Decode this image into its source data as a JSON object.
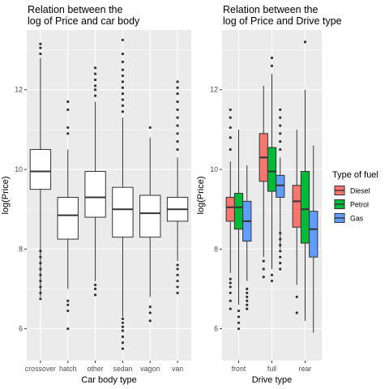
{
  "chart_data": [
    {
      "type": "boxplot",
      "title": "Relation between the\nlog of Price and car body",
      "xlabel": "Car body type",
      "ylabel": "log(Price)",
      "ylim": [
        5.2,
        13.5
      ],
      "yticks": [
        6,
        8,
        10,
        12
      ],
      "grid": true,
      "categories": [
        "crossover",
        "hatch",
        "other",
        "sedan",
        "vagon",
        "van"
      ],
      "boxes": [
        {
          "category": "crossover",
          "whisker_low": 6.8,
          "q1": 9.5,
          "median": 9.95,
          "q3": 10.5,
          "whisker_high": 12.8,
          "outliers": [
            6.75,
            6.9,
            7.05,
            7.2,
            7.35,
            7.5,
            7.65,
            7.8,
            7.95,
            12.9,
            13.05,
            13.15
          ]
        },
        {
          "category": "hatch",
          "whisker_low": 7.0,
          "q1": 8.25,
          "median": 8.85,
          "q3": 9.3,
          "whisker_high": 10.5,
          "outliers": [
            6.0,
            6.45,
            6.6,
            6.7,
            10.9,
            11.05,
            11.5,
            11.7
          ]
        },
        {
          "category": "other",
          "whisker_low": 7.2,
          "q1": 8.8,
          "median": 9.3,
          "q3": 9.95,
          "whisker_high": 11.7,
          "outliers": [
            6.85,
            7.0,
            7.1,
            11.85,
            12.0,
            12.1,
            12.25,
            12.4,
            12.55
          ]
        },
        {
          "category": "sedan",
          "whisker_low": 6.3,
          "q1": 8.3,
          "median": 9.0,
          "q3": 9.55,
          "whisker_high": 11.3,
          "outliers": [
            5.5,
            5.65,
            5.8,
            5.95,
            6.05,
            6.15,
            6.25,
            11.45,
            11.6,
            11.75,
            11.9,
            12.05,
            12.2,
            12.35,
            12.5,
            12.7,
            12.9,
            13.25
          ]
        },
        {
          "category": "vagon",
          "whisker_low": 6.8,
          "q1": 8.3,
          "median": 8.9,
          "q3": 9.35,
          "whisker_high": 10.8,
          "outliers": [
            6.2,
            6.4,
            6.55,
            11.05
          ]
        },
        {
          "category": "van",
          "whisker_low": 7.7,
          "q1": 8.7,
          "median": 9.0,
          "q3": 9.3,
          "whisker_high": 10.3,
          "outliers": [
            6.9,
            7.05,
            7.2,
            7.35,
            7.5,
            7.6,
            10.5,
            10.7,
            10.9,
            11.1,
            11.3,
            11.5,
            11.7,
            11.9,
            12.05,
            12.2
          ]
        }
      ]
    },
    {
      "type": "grouped_boxplot",
      "title": "Relation between the\nlog of Price and Drive type",
      "xlabel": "Drive type",
      "ylabel": "log(Price)",
      "ylim": [
        5.2,
        13.5
      ],
      "yticks": [
        6,
        8,
        10,
        12
      ],
      "grid": true,
      "categories": [
        "front",
        "full",
        "rear"
      ],
      "legend": {
        "title": "Type of fuel",
        "placement": "right",
        "entries": [
          {
            "name": "Diesel",
            "color": "#F8766D"
          },
          {
            "name": "Petrol",
            "color": "#00BA38"
          },
          {
            "name": "Gas",
            "color": "#619CFF"
          }
        ]
      },
      "series": [
        {
          "name": "Diesel",
          "color": "#F8766D",
          "boxes": [
            {
              "category": "front",
              "whisker_low": 7.4,
              "q1": 8.7,
              "median": 9.05,
              "q3": 9.3,
              "whisker_high": 10.2,
              "outliers": [
                6.5,
                6.7,
                6.9,
                7.05,
                7.15,
                7.25,
                10.5,
                10.8,
                11.05,
                11.3,
                11.5
              ]
            },
            {
              "category": "full",
              "whisker_low": 7.8,
              "q1": 9.7,
              "median": 10.3,
              "q3": 10.9,
              "whisker_high": 12.1,
              "outliers": [
                7.3,
                7.5,
                7.7
              ]
            },
            {
              "category": "rear",
              "whisker_low": 7.1,
              "q1": 8.55,
              "median": 9.2,
              "q3": 9.6,
              "whisker_high": 11.0,
              "outliers": [
                6.4,
                6.8
              ]
            }
          ]
        },
        {
          "name": "Petrol",
          "color": "#00BA38",
          "boxes": [
            {
              "category": "front",
              "whisker_low": 6.6,
              "q1": 8.5,
              "median": 9.05,
              "q3": 9.4,
              "whisker_high": 11.0,
              "outliers": [
                6.0,
                6.15,
                6.3,
                6.45
              ]
            },
            {
              "category": "full",
              "whisker_low": 7.5,
              "q1": 9.45,
              "median": 9.95,
              "q3": 10.55,
              "whisker_high": 12.4,
              "outliers": [
                7.2,
                7.35,
                12.6,
                12.8
              ]
            },
            {
              "category": "rear",
              "whisker_low": 6.2,
              "q1": 8.15,
              "median": 9.0,
              "q3": 9.95,
              "whisker_high": 12.0,
              "outliers": [
                13.2
              ]
            }
          ]
        },
        {
          "name": "Gas",
          "color": "#619CFF",
          "boxes": [
            {
              "category": "front",
              "whisker_low": 7.2,
              "q1": 8.2,
              "median": 8.7,
              "q3": 9.2,
              "whisker_high": 10.1,
              "outliers": [
                6.5,
                6.6,
                6.7,
                6.8,
                6.9,
                7.0
              ]
            },
            {
              "category": "full",
              "whisker_low": 8.0,
              "q1": 9.3,
              "median": 9.6,
              "q3": 9.85,
              "whisker_high": 10.3,
              "outliers": [
                7.5,
                7.65,
                7.8,
                7.95,
                8.1,
                8.25,
                8.4,
                10.5,
                10.7,
                10.9,
                11.1,
                11.3,
                11.5
              ]
            },
            {
              "category": "rear",
              "whisker_low": 5.9,
              "q1": 7.8,
              "median": 8.5,
              "q3": 8.95,
              "whisker_high": 10.6,
              "outliers": []
            }
          ]
        }
      ]
    }
  ]
}
